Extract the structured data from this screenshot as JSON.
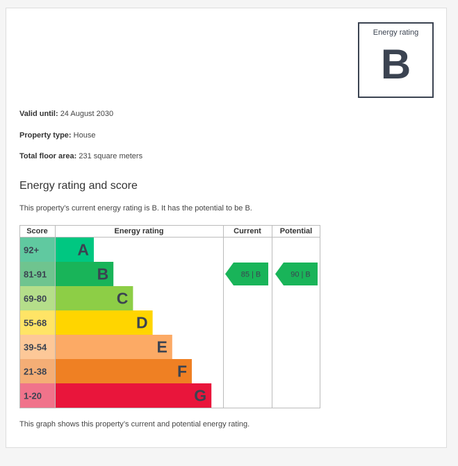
{
  "rating_box": {
    "label": "Energy rating",
    "letter": "B"
  },
  "info": {
    "valid_until_label": "Valid until:",
    "valid_until_value": "24 August 2030",
    "property_type_label": "Property type:",
    "property_type_value": "House",
    "floor_area_label": "Total floor area:",
    "floor_area_value": "231 square meters"
  },
  "section": {
    "title": "Energy rating and score",
    "description": "This property’s current energy rating is B. It has the potential to be B.",
    "footnote": "This graph shows this property’s current and potential energy rating."
  },
  "chart_data": {
    "type": "table",
    "headers": [
      "Score",
      "Energy rating",
      "Current",
      "Potential"
    ],
    "bands": [
      {
        "score": "92+",
        "letter": "A",
        "color": "#00c781",
        "score_color": "#60c9a0"
      },
      {
        "score": "81-91",
        "letter": "B",
        "color": "#19b459",
        "score_color": "#6fc48f"
      },
      {
        "score": "69-80",
        "letter": "C",
        "color": "#8dce46",
        "score_color": "#b5de8a"
      },
      {
        "score": "55-68",
        "letter": "D",
        "color": "#ffd500",
        "score_color": "#ffe466"
      },
      {
        "score": "39-54",
        "letter": "E",
        "color": "#fcaa65",
        "score_color": "#fdc898"
      },
      {
        "score": "21-38",
        "letter": "F",
        "color": "#ef8023",
        "score_color": "#f4ae76"
      },
      {
        "score": "1-20",
        "letter": "G",
        "color": "#e9153b",
        "score_color": "#f0738b"
      }
    ],
    "current": {
      "value": 85,
      "letter": "B",
      "label": "85 | B",
      "color": "#19b459"
    },
    "potential": {
      "value": 90,
      "letter": "B",
      "label": "90 | B",
      "color": "#19b459"
    },
    "text_color": "#3b4351"
  }
}
